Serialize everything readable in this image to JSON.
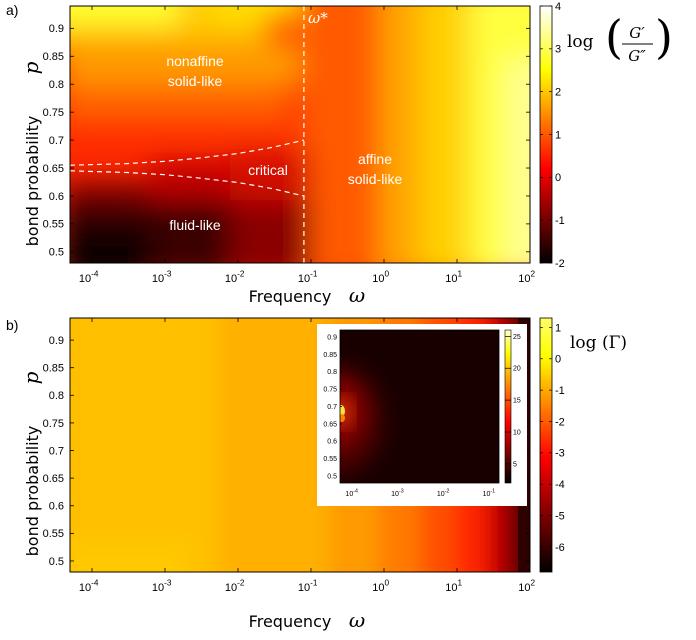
{
  "chart_data": [
    {
      "panel_label": "a)",
      "type": "heatmap",
      "xlabel": "Frequency",
      "xlabel_symbol": "ω",
      "ylabel": "bond probability",
      "ylabel_symbol": "p",
      "x_scale": "log",
      "xlim": [
        5e-05,
        100
      ],
      "ylim": [
        0.48,
        0.94
      ],
      "x_ticks": [
        0.0001,
        0.001,
        0.01,
        0.1,
        1,
        10,
        100
      ],
      "x_tick_labels": [
        [
          "10",
          "-4"
        ],
        [
          "10",
          "-3"
        ],
        [
          "10",
          "-2"
        ],
        [
          "10",
          "-1"
        ],
        [
          "10",
          "0"
        ],
        [
          "10",
          "1"
        ],
        [
          "10",
          "2"
        ]
      ],
      "y_ticks": [
        0.5,
        0.55,
        0.6,
        0.65,
        0.7,
        0.75,
        0.8,
        0.85,
        0.9
      ],
      "y_tick_labels": [
        "0.5",
        "0.55",
        "0.6",
        "0.65",
        "0.7",
        "0.75",
        "0.8",
        "0.85",
        "0.9"
      ],
      "colorbar": {
        "label_text": "log",
        "label_numerator": "G′",
        "label_denominator": "G″",
        "range": [
          -2,
          4
        ],
        "ticks": [
          -2,
          -1,
          0,
          1,
          2,
          3,
          4
        ],
        "tick_labels": [
          "-2",
          "-1",
          "0",
          "1",
          "2",
          "3",
          "4"
        ],
        "colormap": "hot"
      },
      "field_description_points": [
        {
          "p": 0.9,
          "log_omega": -4.3,
          "value": 3.2
        },
        {
          "p": 0.5,
          "log_omega": -4.2,
          "value": -1.9
        },
        {
          "p": 0.65,
          "log_omega": -1.1,
          "value": 0.7
        },
        {
          "p": 0.7,
          "log_omega": 2.0,
          "value": 3.6
        }
      ],
      "crossover_frequency": {
        "label": "ω*",
        "omega": 0.08
      },
      "critical_region": {
        "omega": [
          5e-05,
          0.0003,
          0.001,
          0.003,
          0.01,
          0.03,
          0.08
        ],
        "p_upper": [
          0.655,
          0.658,
          0.662,
          0.668,
          0.676,
          0.687,
          0.7
        ],
        "p_lower": [
          0.645,
          0.642,
          0.638,
          0.632,
          0.624,
          0.613,
          0.6
        ]
      },
      "annotations": {
        "nonaffine": [
          "nonaffine",
          "solid-like"
        ],
        "critical": "critical",
        "affine": [
          "affine",
          "solid-like"
        ],
        "fluid": "fluid-like"
      }
    },
    {
      "panel_label": "b)",
      "type": "heatmap",
      "xlabel": "Frequency",
      "xlabel_symbol": "ω",
      "ylabel": "bond probability",
      "ylabel_symbol": "p",
      "x_scale": "log",
      "xlim": [
        5e-05,
        100
      ],
      "ylim": [
        0.48,
        0.94
      ],
      "x_ticks": [
        0.0001,
        0.001,
        0.01,
        0.1,
        1,
        10,
        100
      ],
      "x_tick_labels": [
        [
          "10",
          "-4"
        ],
        [
          "10",
          "-3"
        ],
        [
          "10",
          "-2"
        ],
        [
          "10",
          "-1"
        ],
        [
          "10",
          "0"
        ],
        [
          "10",
          "1"
        ],
        [
          "10",
          "2"
        ]
      ],
      "y_ticks": [
        0.5,
        0.55,
        0.6,
        0.65,
        0.7,
        0.75,
        0.8,
        0.85,
        0.9
      ],
      "y_tick_labels": [
        "0.5",
        "0.55",
        "0.6",
        "0.65",
        "0.7",
        "0.75",
        "0.8",
        "0.85",
        "0.9"
      ],
      "colorbar": {
        "label": "log (Γ)",
        "range": [
          -6.8,
          1.3
        ],
        "ticks": [
          -6,
          -5,
          -4,
          -3,
          -2,
          -1,
          0,
          1
        ],
        "tick_labels": [
          "-6",
          "-5",
          "-4",
          "-3",
          "-2",
          "-1",
          "0",
          "1"
        ],
        "colormap": "hot"
      },
      "inset": {
        "type": "heatmap",
        "x_scale": "log",
        "xlim": [
          5e-05,
          0.15
        ],
        "ylim": [
          0.48,
          0.92
        ],
        "x_ticks": [
          0.0001,
          0.001,
          0.01,
          0.1
        ],
        "x_tick_labels": [
          [
            "10",
            "-4"
          ],
          [
            "10",
            "-3"
          ],
          [
            "10",
            "-2"
          ],
          [
            "10",
            "-1"
          ]
        ],
        "y_ticks": [
          0.5,
          0.55,
          0.6,
          0.65,
          0.7,
          0.75,
          0.8,
          0.85,
          0.9
        ],
        "y_tick_labels": [
          "0.5",
          "0.55",
          "0.6",
          "0.65",
          "0.7",
          "0.75",
          "0.8",
          "0.85",
          "0.9"
        ],
        "colorbar": {
          "range": [
            2,
            26
          ],
          "ticks": [
            5,
            10,
            15,
            20,
            25
          ],
          "tick_labels": [
            "5",
            "10",
            "15",
            "20",
            "25"
          ]
        },
        "peak": {
          "omega": 5e-05,
          "p": 0.7,
          "value": 26
        }
      }
    }
  ]
}
